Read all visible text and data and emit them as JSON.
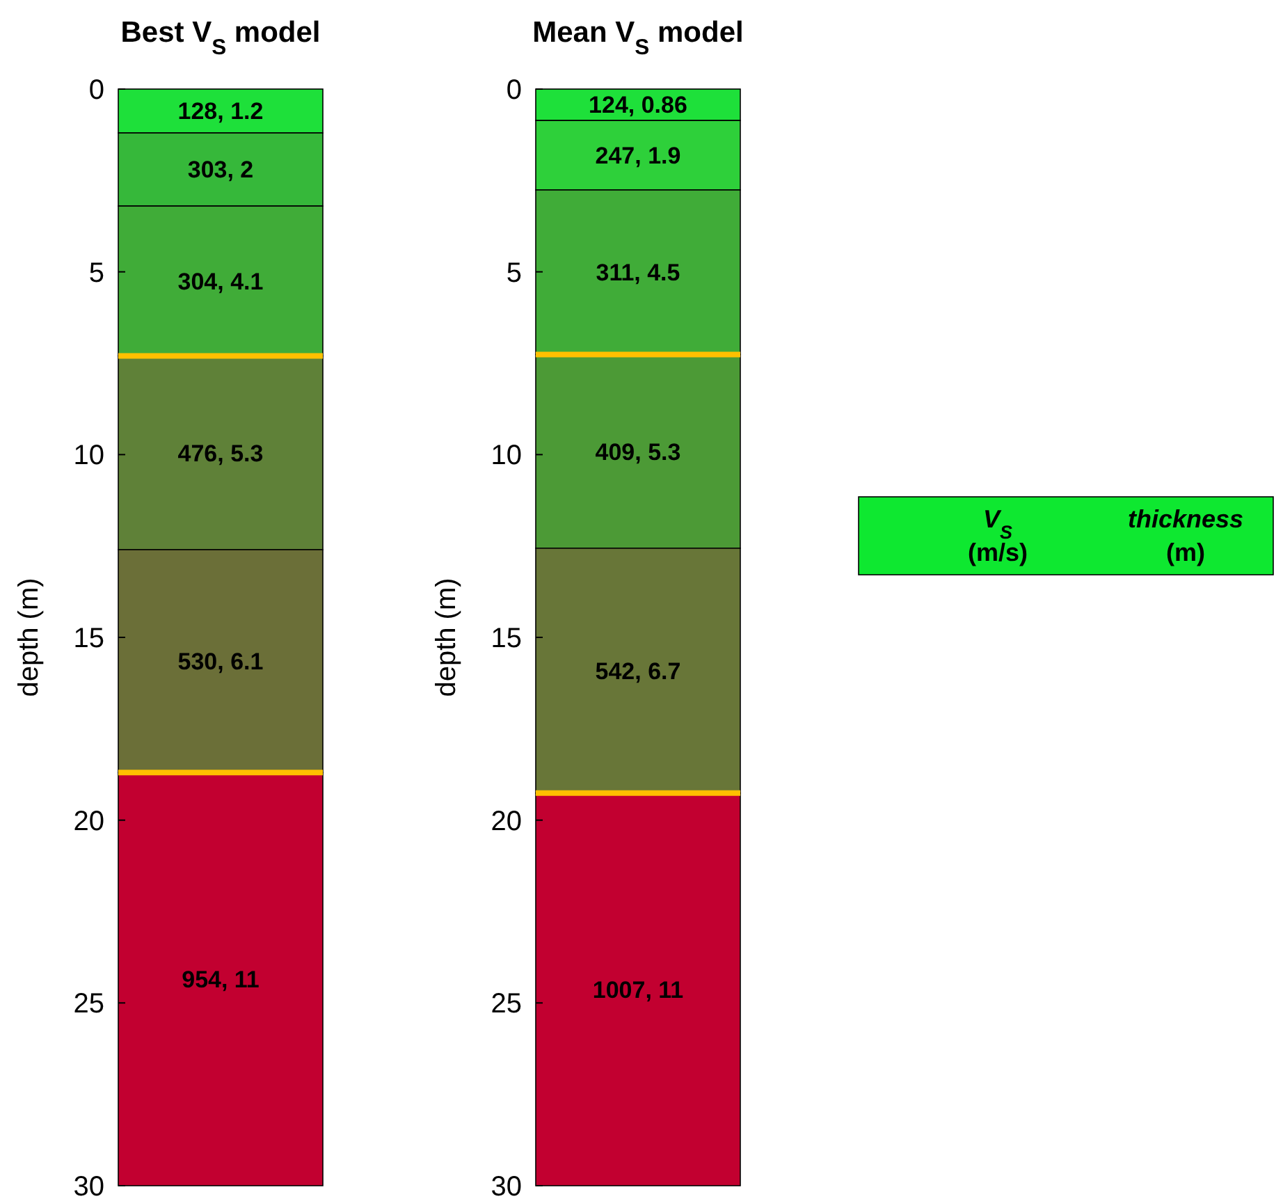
{
  "chart_data": [
    {
      "type": "bar",
      "title": "Best V$_{S}$ model",
      "ylabel": "depth (m)",
      "categories": [
        null
      ],
      "stacked": true,
      "ylim": [
        30,
        0
      ],
      "yticks": [
        0,
        5,
        10,
        15,
        20,
        25,
        30
      ],
      "tick_labels": "y",
      "series": [
        {
          "color": "#1ee03a",
          "values": [
            1.2
          ],
          "value_labels": [
            "128, 1.2"
          ]
        },
        {
          "color": "#36b83a",
          "values": [
            2
          ],
          "value_labels": [
            "303, 2"
          ]
        },
        {
          "color": "#40ac38",
          "values": [
            4.1
          ],
          "value_labels": [
            "304, 4.1"
          ]
        },
        {
          "color": "#5f8138",
          "values": [
            5.3
          ],
          "value_labels": [
            "476, 5.3"
          ]
        },
        {
          "color": "#6b6f38",
          "values": [
            6.1
          ],
          "value_labels": [
            "530, 6.1"
          ]
        },
        {
          "color": "#c20030",
          "values": [
            11.3
          ],
          "value_labels": [
            "954, 11"
          ]
        }
      ],
      "ref_lines": [
        {
          "axis": "y",
          "value": 7.3,
          "color": "#ffc000"
        },
        {
          "axis": "y",
          "value": 18.7,
          "color": "#ffc000"
        }
      ]
    },
    {
      "type": "bar",
      "title": "Mean V$_{S}$ model",
      "ylabel": "depth (m)",
      "categories": [
        null
      ],
      "stacked": true,
      "ylim": [
        30,
        0
      ],
      "yticks": [
        0,
        5,
        10,
        15,
        20,
        25,
        30
      ],
      "tick_labels": "y",
      "series": [
        {
          "color": "#1ee03a",
          "values": [
            0.86
          ],
          "value_labels": [
            "124, 0.86"
          ]
        },
        {
          "color": "#2ed03a",
          "values": [
            1.9
          ],
          "value_labels": [
            "247, 1.9"
          ]
        },
        {
          "color": "#40ac38",
          "values": [
            4.5
          ],
          "value_labels": [
            "311, 4.5"
          ]
        },
        {
          "color": "#4c9a36",
          "values": [
            5.3
          ],
          "value_labels": [
            "409, 5.3"
          ]
        },
        {
          "color": "#687638",
          "values": [
            6.7
          ],
          "value_labels": [
            "542, 6.7"
          ]
        },
        {
          "color": "#c20030",
          "values": [
            10.74
          ],
          "value_labels": [
            "1007, 11"
          ]
        }
      ],
      "ref_lines": [
        {
          "axis": "y",
          "value": 7.26,
          "color": "#ffc000"
        },
        {
          "axis": "y",
          "value": 19.26,
          "color": "#ffc000"
        }
      ],
      "annotations": [
        "V$_{S}$",
        "(m/s)",
        "thickness",
        "(m)"
      ]
    }
  ]
}
